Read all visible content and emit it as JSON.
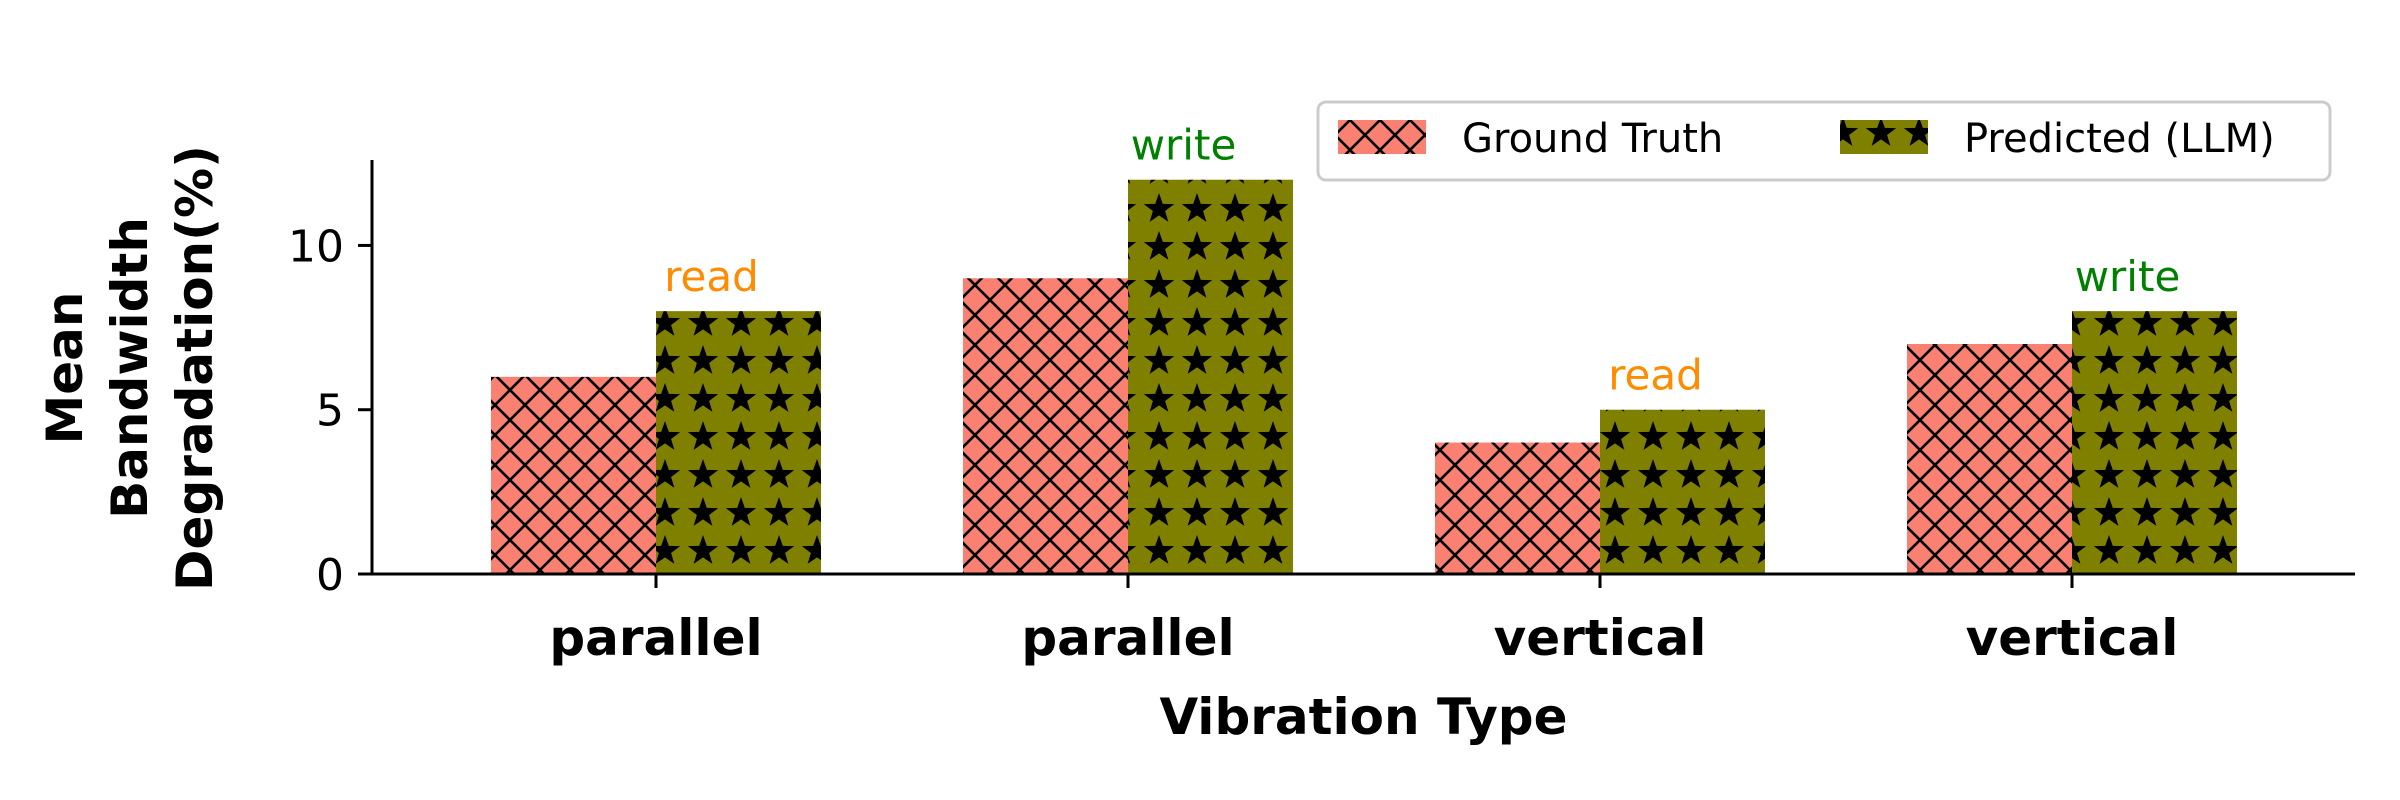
{
  "chart_data": {
    "type": "bar",
    "categories": [
      "parallel",
      "parallel",
      "vertical",
      "vertical"
    ],
    "series": [
      {
        "name": "Ground Truth",
        "values": [
          6,
          9,
          4,
          7
        ],
        "color": "#fa8072",
        "pattern": "crosshatch"
      },
      {
        "name": "Predicted (LLM)",
        "values": [
          8,
          12,
          5,
          8
        ],
        "color": "#808000",
        "pattern": "stars"
      }
    ],
    "annotations": [
      {
        "text": "read",
        "color": "#ff8c00"
      },
      {
        "text": "write",
        "color": "#008000"
      },
      {
        "text": "read",
        "color": "#ff8c00"
      },
      {
        "text": "write",
        "color": "#008000"
      }
    ],
    "xlabel": "Vibration Type",
    "ylabel_lines": [
      "Mean",
      "Bandwidth",
      "Degradation(%)"
    ],
    "ylim": [
      0,
      12.6
    ],
    "yticks": [
      0,
      5,
      10
    ],
    "legend": {
      "placement": "top-right",
      "columns": 2
    },
    "grid": false
  }
}
